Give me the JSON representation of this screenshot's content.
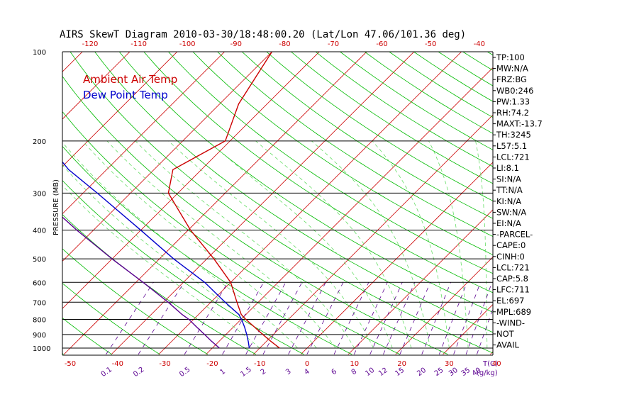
{
  "chart_data": {
    "type": "line",
    "title": "AIRS SkewT Diagram 2010-03-30/18:48:00.20 (Lat/Lon 47.06/101.36 deg)",
    "ylabel": "PRESSURE (MB)",
    "xlabel": "T(C)",
    "mixing_ratio_unit": "(g/kg)",
    "legend": [
      "Ambient Air Temp",
      "Dew Point Temp"
    ],
    "pressure_ticks": [
      100,
      200,
      300,
      400,
      500,
      600,
      700,
      800,
      900,
      1000
    ],
    "top_ticks": [
      "-120",
      "-110",
      "-100",
      "-90",
      "-80",
      "-70",
      "-60",
      "-50",
      "-40"
    ],
    "bottom_ticks": [
      "-50",
      "-40",
      "-30",
      "-20",
      "-10",
      "0",
      "10",
      "20",
      "30",
      "40"
    ],
    "mixing_ratio_labels": [
      "0.1",
      "0.2",
      "0.5",
      "1",
      "1.5",
      "2",
      "3",
      "4",
      "6",
      "8",
      "10",
      "12",
      "15",
      "20",
      "25",
      "30",
      "35",
      "40"
    ],
    "series": [
      {
        "name": "Ambient Air Temp",
        "color": "#cc0000",
        "pressure": [
          1000,
          950,
          900,
          850,
          800,
          770,
          700,
          600,
          500,
          400,
          300,
          250,
          200,
          150,
          100
        ],
        "temperature": [
          -5.8,
          -9.0,
          -12.2,
          -15.5,
          -19.0,
          -21.0,
          -24.5,
          -30.0,
          -38.5,
          -49.5,
          -62.0,
          -66.0,
          -61.0,
          -66.0,
          -70.0
        ]
      },
      {
        "name": "Dew Point Temp",
        "color": "#0000cc",
        "pressure": [
          1000,
          950,
          900,
          850,
          800,
          770,
          700,
          600,
          500,
          400,
          300,
          250,
          200,
          150,
          100
        ],
        "temperature": [
          -12.2,
          -13.8,
          -15.6,
          -17.6,
          -19.9,
          -21.5,
          -27.0,
          -35.5,
          -47.0,
          -60.0,
          -77.0,
          -88.0,
          -99.0,
          -107.0,
          -117.0
        ]
      },
      {
        "name": "Parcel",
        "color": "#5a0090",
        "pressure": [
          1000,
          950,
          900,
          850,
          800,
          770,
          700,
          600,
          500,
          400,
          300,
          250,
          200,
          150,
          100
        ],
        "temperature": [
          -18.5,
          -21.5,
          -24.5,
          -27.7,
          -31.0,
          -33.5,
          -39.0,
          -48.5,
          -60.0,
          -73.5,
          -90.0,
          -100.0,
          -111.0,
          -124.0,
          -139.0
        ]
      }
    ],
    "indices": [
      "TP:100",
      "MW:N/A",
      "FRZ:BG",
      "WB0:246",
      "PW:1.33",
      "RH:74.2",
      "MAXT:-13.7",
      "TH:3245",
      "L57:5.1",
      "LCL:721",
      "LI:8.1",
      "SI:N/A",
      "TT:N/A",
      "KI:N/A",
      "SW:N/A",
      "EI:N/A",
      "-PARCEL-",
      "CAPE:0",
      "CINH:0",
      "LCL:721",
      "CAP:5.8",
      "LFC:711",
      "EL:697",
      "MPL:689",
      "-WIND-",
      "NOT",
      "AVAIL"
    ]
  },
  "colors": {
    "isotherm": "#cc0000",
    "dry_adiabat": "#00bb00",
    "moist_adiabat": "#66dd66",
    "mixing_ratio": "#5a0090",
    "temp": "#cc0000",
    "dew": "#0000cc",
    "parcel": "#5a0090",
    "axis_tick_red": "#cc0000",
    "axis_tick_purple": "#5a0090"
  }
}
